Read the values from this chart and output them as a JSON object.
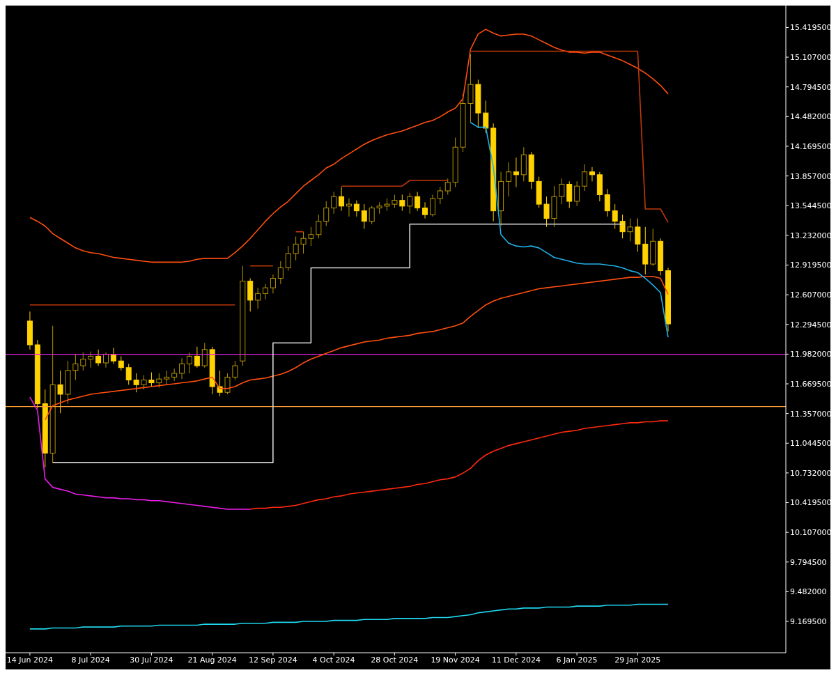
{
  "chart_data": {
    "type": "candlestick",
    "color": "#ffd200",
    "categories": [
      "14 Jun 2024",
      null,
      null,
      null,
      null,
      null,
      null,
      null,
      "8 Jul 2024",
      null,
      null,
      null,
      null,
      null,
      null,
      null,
      "30 Jul 2024",
      null,
      null,
      null,
      null,
      null,
      null,
      null,
      "21 Aug 2024",
      null,
      null,
      null,
      null,
      null,
      null,
      null,
      "12 Sep 2024",
      null,
      null,
      null,
      null,
      null,
      null,
      null,
      "4 Oct 2024",
      null,
      null,
      null,
      null,
      null,
      null,
      null,
      "28 Oct 2024",
      null,
      null,
      null,
      null,
      null,
      null,
      null,
      "19 Nov 2024",
      null,
      null,
      null,
      null,
      null,
      null,
      null,
      "11 Dec 2024",
      null,
      null,
      null,
      null,
      null,
      null,
      null,
      "6 Jan 2025",
      null,
      null,
      null,
      null,
      null,
      null,
      null,
      "29 Jan 2025",
      null,
      null,
      null,
      null
    ],
    "ohlc": [
      [
        12.33,
        12.43,
        12.03,
        12.08
      ],
      [
        12.08,
        12.13,
        11.41,
        11.46
      ],
      [
        11.46,
        11.61,
        10.79,
        10.94
      ],
      [
        10.94,
        12.28,
        10.84,
        11.66
      ],
      [
        11.66,
        11.81,
        11.36,
        11.56
      ],
      [
        11.56,
        11.91,
        11.46,
        11.81
      ],
      [
        11.81,
        11.98,
        11.71,
        11.88
      ],
      [
        11.86,
        12.0,
        11.81,
        11.93
      ],
      [
        11.93,
        12.01,
        11.84,
        11.96
      ],
      [
        11.96,
        12.03,
        11.86,
        11.89
      ],
      [
        11.89,
        12.0,
        11.84,
        11.98
      ],
      [
        11.98,
        12.05,
        11.88,
        11.91
      ],
      [
        11.91,
        11.96,
        11.81,
        11.84
      ],
      [
        11.84,
        11.88,
        11.66,
        11.71
      ],
      [
        11.71,
        11.78,
        11.58,
        11.66
      ],
      [
        11.66,
        11.76,
        11.61,
        11.71
      ],
      [
        11.71,
        11.79,
        11.64,
        11.68
      ],
      [
        11.68,
        11.78,
        11.63,
        11.72
      ],
      [
        11.72,
        11.81,
        11.66,
        11.74
      ],
      [
        11.74,
        11.83,
        11.7,
        11.78
      ],
      [
        11.78,
        11.94,
        11.72,
        11.88
      ],
      [
        11.88,
        12.0,
        11.78,
        11.96
      ],
      [
        11.96,
        12.06,
        11.84,
        11.86
      ],
      [
        11.86,
        12.1,
        11.84,
        12.03
      ],
      [
        12.03,
        12.06,
        11.56,
        11.64
      ],
      [
        11.64,
        11.81,
        11.54,
        11.58
      ],
      [
        11.58,
        11.78,
        11.56,
        11.74
      ],
      [
        11.74,
        11.91,
        11.71,
        11.86
      ],
      [
        11.91,
        12.91,
        11.86,
        12.75
      ],
      [
        12.75,
        12.78,
        12.43,
        12.55
      ],
      [
        12.55,
        12.68,
        12.46,
        12.62
      ],
      [
        12.62,
        12.72,
        12.56,
        12.68
      ],
      [
        12.68,
        12.82,
        12.62,
        12.78
      ],
      [
        12.78,
        12.96,
        12.72,
        12.89
      ],
      [
        12.89,
        13.12,
        12.86,
        13.04
      ],
      [
        13.04,
        13.22,
        12.97,
        13.14
      ],
      [
        13.14,
        13.27,
        13.04,
        13.2
      ],
      [
        13.2,
        13.32,
        13.12,
        13.24
      ],
      [
        13.24,
        13.45,
        13.2,
        13.38
      ],
      [
        13.38,
        13.59,
        13.33,
        13.52
      ],
      [
        13.52,
        13.69,
        13.46,
        13.64
      ],
      [
        13.64,
        13.74,
        13.49,
        13.54
      ],
      [
        13.54,
        13.62,
        13.43,
        13.56
      ],
      [
        13.56,
        13.6,
        13.43,
        13.49
      ],
      [
        13.49,
        13.56,
        13.3,
        13.38
      ],
      [
        13.38,
        13.54,
        13.35,
        13.52
      ],
      [
        13.52,
        13.58,
        13.46,
        13.54
      ],
      [
        13.54,
        13.62,
        13.49,
        13.56
      ],
      [
        13.56,
        13.66,
        13.52,
        13.6
      ],
      [
        13.6,
        13.66,
        13.49,
        13.54
      ],
      [
        13.54,
        13.68,
        13.46,
        13.64
      ],
      [
        13.64,
        13.69,
        13.49,
        13.52
      ],
      [
        13.52,
        13.58,
        13.41,
        13.45
      ],
      [
        13.45,
        13.66,
        13.43,
        13.62
      ],
      [
        13.62,
        13.74,
        13.56,
        13.7
      ],
      [
        13.7,
        13.83,
        13.66,
        13.79
      ],
      [
        13.79,
        14.26,
        13.74,
        14.16
      ],
      [
        14.16,
        14.72,
        14.11,
        14.62
      ],
      [
        14.62,
        15.14,
        14.42,
        14.82
      ],
      [
        14.82,
        14.87,
        14.36,
        14.52
      ],
      [
        14.52,
        14.65,
        14.31,
        14.36
      ],
      [
        14.36,
        14.41,
        13.38,
        13.49
      ],
      [
        13.49,
        13.9,
        13.33,
        13.8
      ],
      [
        13.8,
        14.0,
        13.64,
        13.9
      ],
      [
        13.9,
        14.05,
        13.74,
        13.87
      ],
      [
        13.87,
        14.16,
        13.8,
        14.08
      ],
      [
        14.08,
        14.11,
        13.72,
        13.8
      ],
      [
        13.8,
        13.85,
        13.52,
        13.56
      ],
      [
        13.56,
        13.64,
        13.32,
        13.41
      ],
      [
        13.41,
        13.75,
        13.32,
        13.64
      ],
      [
        13.64,
        13.83,
        13.56,
        13.77
      ],
      [
        13.77,
        13.8,
        13.52,
        13.59
      ],
      [
        13.59,
        13.8,
        13.54,
        13.75
      ],
      [
        13.75,
        13.98,
        13.7,
        13.9
      ],
      [
        13.9,
        13.95,
        13.8,
        13.87
      ],
      [
        13.87,
        13.9,
        13.59,
        13.66
      ],
      [
        13.66,
        13.72,
        13.43,
        13.49
      ],
      [
        13.49,
        13.56,
        13.3,
        13.38
      ],
      [
        13.38,
        13.45,
        13.2,
        13.27
      ],
      [
        13.27,
        13.41,
        13.17,
        13.32
      ],
      [
        13.32,
        13.41,
        13.06,
        13.14
      ],
      [
        13.14,
        13.32,
        12.82,
        12.93
      ],
      [
        12.93,
        13.3,
        12.91,
        13.17
      ],
      [
        13.17,
        13.2,
        12.81,
        12.86
      ],
      [
        12.86,
        12.89,
        12.22,
        12.3
      ]
    ],
    "series": [
      {
        "type": "line",
        "color": "#ff4f10",
        "values": [
          13.42,
          13.38,
          13.33,
          13.25,
          13.2,
          13.15,
          13.1,
          13.07,
          13.05,
          13.04,
          13.02,
          13.0,
          12.99,
          12.98,
          12.97,
          12.96,
          12.95,
          12.95,
          12.95,
          12.95,
          12.95,
          12.96,
          12.98,
          12.99,
          12.99,
          12.99,
          12.99,
          13.05,
          13.12,
          13.2,
          13.29,
          13.38,
          13.46,
          13.53,
          13.59,
          13.67,
          13.75,
          13.81,
          13.87,
          13.94,
          13.98,
          14.04,
          14.09,
          14.14,
          14.19,
          14.23,
          14.26,
          14.29,
          14.31,
          14.33,
          14.36,
          14.39,
          14.42,
          14.44,
          14.48,
          14.53,
          14.57,
          14.67,
          15.19,
          15.35,
          15.4,
          15.36,
          15.33,
          15.34,
          15.35,
          15.35,
          15.33,
          15.29,
          15.25,
          15.21,
          15.18,
          15.16,
          15.16,
          15.15,
          15.16,
          15.16,
          15.13,
          15.1,
          15.07,
          15.03,
          14.99,
          14.94,
          14.88,
          14.81,
          14.72
        ]
      },
      {
        "type": "line",
        "color": "#ff4f10",
        "values": [
          null,
          null,
          11.29,
          11.44,
          11.47,
          11.5,
          11.52,
          11.54,
          11.56,
          11.57,
          11.58,
          11.59,
          11.6,
          11.61,
          11.62,
          11.63,
          11.64,
          11.65,
          11.66,
          11.67,
          11.68,
          11.69,
          11.7,
          11.72,
          11.74,
          11.62,
          11.62,
          11.64,
          11.68,
          11.71,
          11.72,
          11.73,
          11.75,
          11.77,
          11.8,
          11.84,
          11.89,
          11.93,
          11.96,
          11.99,
          12.02,
          12.05,
          12.07,
          12.09,
          12.11,
          12.12,
          12.13,
          12.15,
          12.16,
          12.17,
          12.18,
          12.2,
          12.21,
          12.22,
          12.24,
          12.26,
          12.28,
          12.31,
          12.38,
          12.44,
          12.5,
          12.54,
          12.57,
          12.59,
          12.61,
          12.63,
          12.65,
          12.67,
          12.68,
          12.69,
          12.7,
          12.71,
          12.72,
          12.73,
          12.74,
          12.75,
          12.76,
          12.77,
          12.78,
          12.79,
          12.79,
          12.8,
          12.8,
          12.78,
          12.61
        ]
      },
      {
        "type": "line",
        "color": "#e81ee8",
        "values": [
          11.53,
          11.39,
          10.67,
          10.58,
          10.56,
          10.54,
          10.51,
          10.5,
          10.49,
          10.48,
          10.47,
          10.47,
          10.46,
          10.46,
          10.45,
          10.45,
          10.44,
          10.44,
          10.43,
          10.42,
          10.41,
          10.4,
          10.39,
          10.38,
          10.37,
          10.36,
          10.35,
          10.35,
          10.35,
          10.35,
          null,
          null,
          null,
          null,
          null,
          null,
          null,
          null,
          null,
          null,
          null,
          null,
          null,
          null,
          null,
          null,
          null,
          null,
          null,
          null,
          null,
          null,
          null,
          null,
          null,
          null,
          null,
          null,
          null,
          null,
          null,
          null,
          null,
          null,
          null,
          null,
          null,
          null,
          null,
          null,
          null,
          null,
          null,
          null,
          null,
          null,
          null,
          null,
          null,
          null,
          null,
          null,
          null,
          null,
          null
        ]
      },
      {
        "type": "line",
        "color": "#ff2a10",
        "values": [
          null,
          null,
          null,
          null,
          null,
          null,
          null,
          null,
          null,
          null,
          null,
          null,
          null,
          null,
          null,
          null,
          null,
          null,
          null,
          null,
          null,
          null,
          null,
          null,
          null,
          null,
          null,
          null,
          null,
          10.35,
          10.36,
          10.36,
          10.37,
          10.37,
          10.38,
          10.39,
          10.41,
          10.43,
          10.45,
          10.46,
          10.48,
          10.49,
          10.51,
          10.52,
          10.53,
          10.54,
          10.55,
          10.56,
          10.57,
          10.58,
          10.59,
          10.61,
          10.62,
          10.64,
          10.66,
          10.67,
          10.69,
          10.73,
          10.78,
          10.86,
          10.92,
          10.96,
          10.99,
          11.02,
          11.04,
          11.06,
          11.08,
          11.1,
          11.12,
          11.14,
          11.16,
          11.17,
          11.18,
          11.2,
          11.21,
          11.22,
          11.23,
          11.24,
          11.25,
          11.26,
          11.26,
          11.27,
          11.27,
          11.28,
          11.28
        ]
      },
      {
        "type": "step",
        "color": "#d8d8d8",
        "values": [
          null,
          null,
          null,
          10.84,
          10.84,
          10.84,
          10.84,
          10.84,
          10.84,
          10.84,
          10.84,
          10.84,
          10.84,
          10.84,
          10.84,
          10.84,
          10.84,
          10.84,
          10.84,
          10.84,
          10.84,
          10.84,
          10.84,
          10.84,
          10.84,
          10.84,
          10.84,
          10.84,
          10.84,
          10.84,
          10.84,
          10.84,
          12.1,
          12.1,
          12.1,
          12.1,
          12.1,
          12.89,
          12.89,
          12.89,
          12.89,
          12.89,
          12.89,
          12.89,
          12.89,
          12.89,
          12.89,
          12.89,
          12.89,
          12.89,
          13.35,
          13.35,
          13.35,
          13.35,
          13.35,
          13.35,
          13.35,
          13.35,
          13.35,
          13.35,
          13.35,
          13.35,
          13.35,
          13.35,
          13.35,
          13.35,
          13.35,
          13.35,
          13.35,
          13.35,
          13.35,
          13.35,
          13.35,
          13.35,
          13.35,
          13.35,
          13.35,
          13.35,
          13.35,
          null,
          null,
          null,
          null,
          null,
          null
        ]
      },
      {
        "type": "line",
        "color": "#c03808",
        "values": [
          12.5,
          12.5,
          12.5,
          12.5,
          12.5,
          12.5,
          12.5,
          12.5,
          12.5,
          12.5,
          12.5,
          12.5,
          12.5,
          12.5,
          12.5,
          12.5,
          12.5,
          12.5,
          12.5,
          12.5,
          12.5,
          12.5,
          12.5,
          12.5,
          12.5,
          12.5,
          12.5,
          12.5,
          null,
          12.91,
          12.91,
          12.91,
          12.91,
          null,
          null,
          13.27,
          13.27,
          null,
          null,
          null,
          null,
          13.75,
          13.75,
          13.75,
          13.75,
          13.75,
          13.75,
          13.75,
          13.75,
          13.75,
          13.81,
          13.81,
          13.81,
          13.81,
          13.81,
          13.81,
          null,
          null,
          15.17,
          15.17,
          15.17,
          15.17,
          15.17,
          15.17,
          15.17,
          15.17,
          15.17,
          15.17,
          15.17,
          15.17,
          15.17,
          15.17,
          15.17,
          15.17,
          15.17,
          15.17,
          15.17,
          15.17,
          15.17,
          15.17,
          15.17,
          13.51,
          13.51,
          13.51,
          13.37
        ]
      },
      {
        "type": "line",
        "color": "#20b0e8",
        "values": [
          null,
          null,
          null,
          null,
          null,
          null,
          null,
          null,
          null,
          null,
          null,
          null,
          null,
          null,
          null,
          null,
          null,
          null,
          null,
          null,
          null,
          null,
          null,
          null,
          null,
          null,
          null,
          null,
          null,
          null,
          null,
          null,
          null,
          null,
          null,
          null,
          null,
          null,
          null,
          null,
          null,
          null,
          null,
          null,
          null,
          null,
          null,
          null,
          null,
          null,
          null,
          null,
          null,
          null,
          null,
          null,
          null,
          null,
          14.42,
          14.37,
          14.37,
          13.95,
          13.24,
          13.15,
          13.12,
          13.11,
          13.12,
          13.1,
          13.05,
          13.0,
          12.98,
          12.96,
          12.94,
          12.93,
          12.93,
          12.93,
          12.92,
          12.91,
          12.89,
          12.86,
          12.84,
          12.78,
          12.71,
          12.63,
          12.16
        ]
      },
      {
        "type": "line",
        "color": "#20d8f0",
        "values": [
          9.09,
          9.09,
          9.09,
          9.1,
          9.1,
          9.1,
          9.1,
          9.11,
          9.11,
          9.11,
          9.11,
          9.11,
          9.12,
          9.12,
          9.12,
          9.12,
          9.12,
          9.13,
          9.13,
          9.13,
          9.13,
          9.13,
          9.13,
          9.14,
          9.14,
          9.14,
          9.14,
          9.14,
          9.15,
          9.15,
          9.15,
          9.15,
          9.16,
          9.16,
          9.16,
          9.16,
          9.17,
          9.17,
          9.17,
          9.17,
          9.18,
          9.18,
          9.18,
          9.18,
          9.19,
          9.19,
          9.19,
          9.19,
          9.2,
          9.2,
          9.2,
          9.2,
          9.2,
          9.21,
          9.21,
          9.21,
          9.22,
          9.23,
          9.24,
          9.26,
          9.27,
          9.28,
          9.29,
          9.3,
          9.3,
          9.31,
          9.31,
          9.31,
          9.32,
          9.32,
          9.32,
          9.32,
          9.33,
          9.33,
          9.33,
          9.33,
          9.34,
          9.34,
          9.34,
          9.34,
          9.35,
          9.35,
          9.35,
          9.35,
          9.35
        ]
      }
    ],
    "ref_lines": [
      {
        "axis": "y",
        "value": 11.98,
        "color": "#e020e0"
      },
      {
        "axis": "y",
        "value": 11.43,
        "color": "#ffa030"
      }
    ],
    "ylim": [
      8.84,
      15.65
    ],
    "yticks": [
      {
        "value": 15.4195,
        "label": "15.419500"
      },
      {
        "value": 15.107,
        "label": "15.107000"
      },
      {
        "value": 14.7945,
        "label": "14.794500"
      },
      {
        "value": 14.482,
        "label": "14.482000"
      },
      {
        "value": 14.1695,
        "label": "14.169500"
      },
      {
        "value": 13.857,
        "label": "13.857000"
      },
      {
        "value": 13.5445,
        "label": "13.544500"
      },
      {
        "value": 13.232,
        "label": "13.232000"
      },
      {
        "value": 12.9195,
        "label": "12.919500"
      },
      {
        "value": 12.607,
        "label": "12.607000"
      },
      {
        "value": 12.2945,
        "label": "12.294500"
      },
      {
        "value": 11.982,
        "label": "11.982000"
      },
      {
        "value": 11.6695,
        "label": "11.669500"
      },
      {
        "value": 11.357,
        "label": "11.357000"
      },
      {
        "value": 11.0445,
        "label": "11.044500"
      },
      {
        "value": 10.732,
        "label": "10.732000"
      },
      {
        "value": 10.4195,
        "label": "10.419500"
      },
      {
        "value": 10.107,
        "label": "10.107000"
      },
      {
        "value": 9.7945,
        "label": "9.794500"
      },
      {
        "value": 9.482,
        "label": "9.482000"
      },
      {
        "value": 9.1695,
        "label": "9.169500"
      }
    ],
    "grid": false
  }
}
